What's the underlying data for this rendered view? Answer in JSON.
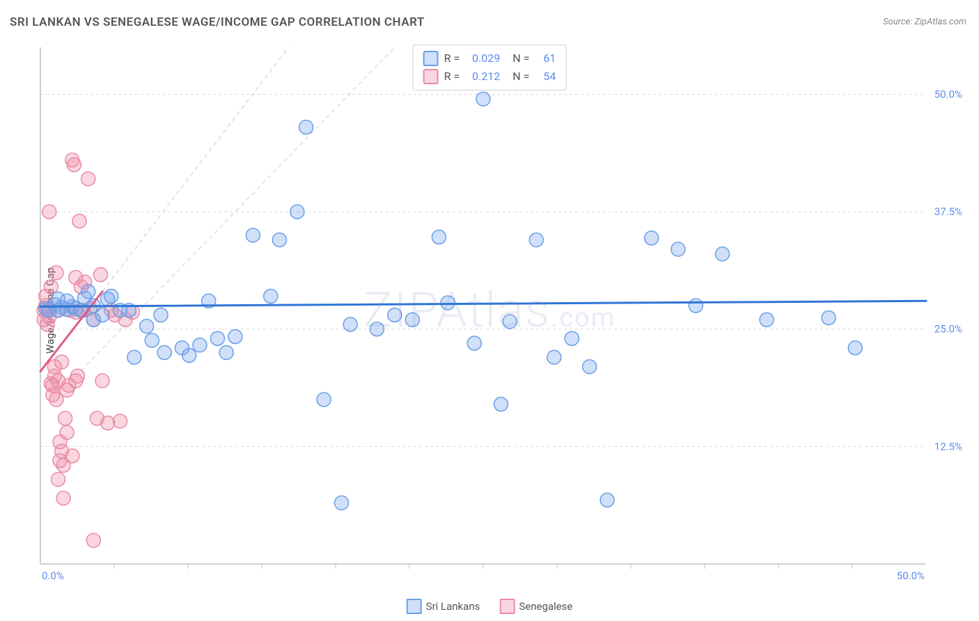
{
  "title": "SRI LANKAN VS SENEGALESE WAGE/INCOME GAP CORRELATION CHART",
  "source": "Source: ZipAtlas.com",
  "ylabel": "Wage/Income Gap",
  "watermark_main": "ZIPAtlas",
  "watermark_suffix": ".com",
  "chart": {
    "type": "scatter",
    "xlim": [
      0,
      50
    ],
    "ylim": [
      0,
      55
    ],
    "x_tick_labels": [
      "0.0%",
      "50.0%"
    ],
    "x_tick_positions": [
      0,
      50
    ],
    "y_tick_labels": [
      "12.5%",
      "25.0%",
      "37.5%",
      "50.0%"
    ],
    "y_tick_positions": [
      12.5,
      25.0,
      37.5,
      50.0
    ],
    "x_minor_ticks": [
      4.17,
      8.33,
      12.5,
      16.67,
      20.83,
      25,
      29.17,
      33.33,
      37.5,
      41.67,
      45.83
    ],
    "grid_color": "#d8d8d8",
    "grid_dash": "4 4",
    "axis_color": "#bfbfbf",
    "background_color": "#ffffff",
    "marker_radius": 10,
    "marker_stroke_width": 1.5,
    "series": [
      {
        "name": "Sri Lankans",
        "color_fill": "rgba(120,165,235,0.35)",
        "color_stroke": "#6a9de8",
        "r_value": "0.029",
        "n_value": "61",
        "trend": {
          "x1": 0,
          "y1": 27.4,
          "x2": 50,
          "y2": 28.0,
          "color": "#2e74d6",
          "width": 3,
          "dash_ext": null
        },
        "trend_ext": {
          "x1": 2,
          "y1": 20,
          "x2": 20,
          "y2": 55,
          "color": "rgba(180,200,230,0.6)",
          "width": 1.5,
          "dash": "6 5"
        },
        "points": [
          [
            0.3,
            27.2
          ],
          [
            0.5,
            27.0
          ],
          [
            0.8,
            27.6
          ],
          [
            1.0,
            27.0
          ],
          [
            1.0,
            28.2
          ],
          [
            1.2,
            27.3
          ],
          [
            1.5,
            27.1
          ],
          [
            1.5,
            28.0
          ],
          [
            1.8,
            27.4
          ],
          [
            2.0,
            27.2
          ],
          [
            2.3,
            27.0
          ],
          [
            2.5,
            28.3
          ],
          [
            2.7,
            29.0
          ],
          [
            3.0,
            27.5
          ],
          [
            3.0,
            26.0
          ],
          [
            3.5,
            26.5
          ],
          [
            3.8,
            28.2
          ],
          [
            4.0,
            28.5
          ],
          [
            4.5,
            27.0
          ],
          [
            5.0,
            27.0
          ],
          [
            5.3,
            22.0
          ],
          [
            6.0,
            25.3
          ],
          [
            6.3,
            23.8
          ],
          [
            6.8,
            26.5
          ],
          [
            7.0,
            22.5
          ],
          [
            8.0,
            23.0
          ],
          [
            8.4,
            22.2
          ],
          [
            9.0,
            23.3
          ],
          [
            9.5,
            28.0
          ],
          [
            10.0,
            24.0
          ],
          [
            10.5,
            22.5
          ],
          [
            11.0,
            24.2
          ],
          [
            12.0,
            35.0
          ],
          [
            13.0,
            28.5
          ],
          [
            13.5,
            34.5
          ],
          [
            14.5,
            37.5
          ],
          [
            15.0,
            46.5
          ],
          [
            16.0,
            17.5
          ],
          [
            17.0,
            6.5
          ],
          [
            17.5,
            25.5
          ],
          [
            19.0,
            25.0
          ],
          [
            20.0,
            26.5
          ],
          [
            21.0,
            26.0
          ],
          [
            22.5,
            34.8
          ],
          [
            23.0,
            27.8
          ],
          [
            24.5,
            23.5
          ],
          [
            25.0,
            49.5
          ],
          [
            26.0,
            17.0
          ],
          [
            26.5,
            25.8
          ],
          [
            28.0,
            34.5
          ],
          [
            29.0,
            22.0
          ],
          [
            30.0,
            24.0
          ],
          [
            31.0,
            21.0
          ],
          [
            32.0,
            6.8
          ],
          [
            34.5,
            34.7
          ],
          [
            36.0,
            33.5
          ],
          [
            37.0,
            27.5
          ],
          [
            38.5,
            33.0
          ],
          [
            41.0,
            26.0
          ],
          [
            44.5,
            26.2
          ],
          [
            46.0,
            23.0
          ]
        ]
      },
      {
        "name": "Senegalese",
        "color_fill": "rgba(240,140,165,0.35)",
        "color_stroke": "#e88aa5",
        "r_value": "0.212",
        "n_value": "54",
        "trend": {
          "x1": 0,
          "y1": 20.5,
          "x2": 3.5,
          "y2": 29.0,
          "color": "#e05a87",
          "width": 3,
          "dash_ext": null
        },
        "trend_ext": {
          "x1": 3.5,
          "y1": 29.0,
          "x2": 14,
          "y2": 55,
          "color": "rgba(235,170,190,0.6)",
          "width": 1.5,
          "dash": "6 5"
        },
        "points": [
          [
            0.2,
            27.0
          ],
          [
            0.2,
            26.0
          ],
          [
            0.3,
            27.5
          ],
          [
            0.3,
            28.5
          ],
          [
            0.4,
            25.5
          ],
          [
            0.4,
            27.0
          ],
          [
            0.5,
            26.3
          ],
          [
            0.5,
            37.5
          ],
          [
            0.6,
            29.5
          ],
          [
            0.6,
            19.2
          ],
          [
            0.7,
            19.0
          ],
          [
            0.7,
            18.0
          ],
          [
            0.8,
            20.0
          ],
          [
            0.8,
            21.0
          ],
          [
            0.9,
            17.5
          ],
          [
            0.9,
            31.0
          ],
          [
            1.0,
            27.0
          ],
          [
            1.0,
            19.5
          ],
          [
            1.0,
            9.0
          ],
          [
            1.1,
            11.0
          ],
          [
            1.1,
            13.0
          ],
          [
            1.2,
            12.0
          ],
          [
            1.2,
            21.5
          ],
          [
            1.3,
            10.5
          ],
          [
            1.3,
            7.0
          ],
          [
            1.4,
            15.5
          ],
          [
            1.5,
            14.0
          ],
          [
            1.5,
            18.5
          ],
          [
            1.6,
            19.0
          ],
          [
            1.7,
            27.0
          ],
          [
            1.8,
            11.5
          ],
          [
            1.8,
            43.0
          ],
          [
            1.9,
            42.5
          ],
          [
            2.0,
            19.5
          ],
          [
            2.0,
            26.8
          ],
          [
            2.0,
            30.5
          ],
          [
            2.1,
            20.0
          ],
          [
            2.2,
            36.5
          ],
          [
            2.3,
            29.5
          ],
          [
            2.4,
            27.0
          ],
          [
            2.5,
            30.0
          ],
          [
            2.7,
            41.0
          ],
          [
            2.8,
            27.2
          ],
          [
            3.0,
            26.0
          ],
          [
            3.0,
            2.5
          ],
          [
            3.2,
            15.5
          ],
          [
            3.4,
            30.8
          ],
          [
            3.5,
            19.5
          ],
          [
            3.8,
            15.0
          ],
          [
            4.0,
            27.0
          ],
          [
            4.2,
            26.5
          ],
          [
            4.5,
            15.2
          ],
          [
            4.8,
            26.0
          ],
          [
            5.2,
            26.8
          ]
        ]
      }
    ]
  },
  "legend": {
    "items": [
      {
        "label": "Sri Lankans",
        "fill": "rgba(120,165,235,0.35)",
        "stroke": "#6a9de8"
      },
      {
        "label": "Senegalese",
        "fill": "rgba(240,140,165,0.35)",
        "stroke": "#e88aa5"
      }
    ]
  }
}
